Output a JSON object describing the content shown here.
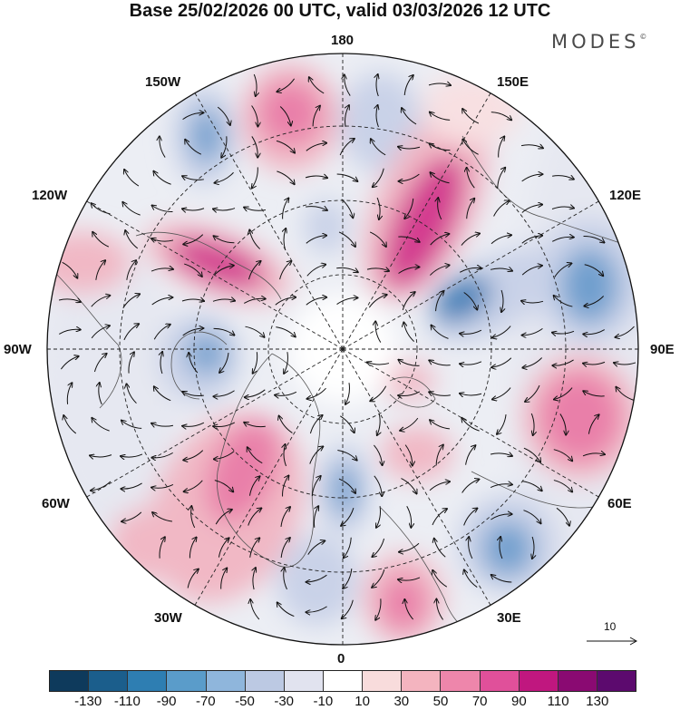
{
  "title": "Base 25/02/2026 00 UTC, valid 03/03/2026 12 UTC",
  "brand": {
    "name": "MODES",
    "mark": "©"
  },
  "longitude_labels": {
    "lon_180": "180",
    "lon_150e": "150E",
    "lon_120e": "120E",
    "lon_90e": "90E",
    "lon_60e": "60E",
    "lon_30e": "30E",
    "lon_0": "0",
    "lon_30w": "30W",
    "lon_60w": "60W",
    "lon_90w": "90W",
    "lon_120w": "120W",
    "lon_150w": "150W"
  },
  "reference_vector": {
    "value": "10"
  },
  "colorbar": {
    "colors": [
      "#0e3a5c",
      "#1b5e8c",
      "#2e7eb2",
      "#5a9cca",
      "#8fb6dc",
      "#bcc9e3",
      "#e1e3ef",
      "#ffffff",
      "#f8dcdc",
      "#f4b4bf",
      "#ee86ab",
      "#e0509a",
      "#c0177f",
      "#8a0a72",
      "#5c0a6e"
    ],
    "ticks": [
      "-130",
      "-110",
      "-90",
      "-70",
      "-50",
      "-30",
      "-10",
      "10",
      "30",
      "50",
      "70",
      "90",
      "110",
      "130"
    ]
  },
  "anomaly_palette": {
    "strong_neg": "#3f7fb8",
    "neg": "#6f9fce",
    "weak_neg": "#c9d2e8",
    "faint_neg": "#e6e8f1",
    "faint_pos": "#f8e0e2",
    "weak_pos": "#f1b8c5",
    "pos": "#e97fa9",
    "strong_pos": "#d33a8f"
  }
}
